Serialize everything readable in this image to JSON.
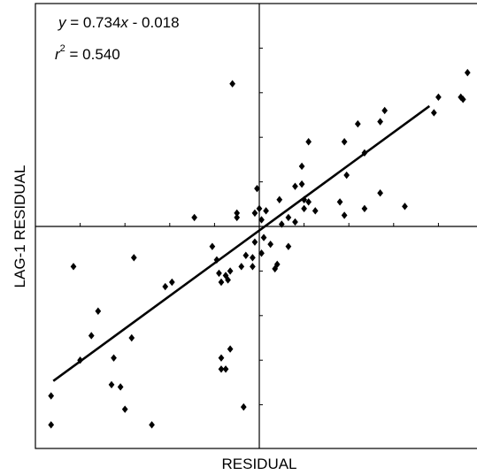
{
  "chart_data": {
    "type": "scatter",
    "title": "",
    "xlabel": "RESIDUAL",
    "ylabel": "LAG-1 RESIDUAL",
    "annotations": {
      "equation": {
        "y_var": "y",
        "eq": " = 0.734",
        "x_var": "x",
        "tail": " - 0.018"
      },
      "r2": {
        "base": "r",
        "exp": "2",
        "value": " = 0.540"
      }
    },
    "xlim": [
      -1.0,
      1.0
    ],
    "ylim": [
      -1.0,
      1.0
    ],
    "xtick_step": 0.2,
    "ytick_step": 0.2,
    "tick_labels_shown": false,
    "grid": false,
    "origin_axes": true,
    "fit_line": {
      "slope": 0.734,
      "intercept": -0.018,
      "x_range": [
        -0.92,
        0.76
      ]
    },
    "series": [
      {
        "marker": "diamond",
        "color": "#000000",
        "points": [
          [
            -0.93,
            -0.76
          ],
          [
            -0.93,
            -0.89
          ],
          [
            -0.83,
            -0.18
          ],
          [
            -0.8,
            -0.6
          ],
          [
            -0.75,
            -0.49
          ],
          [
            -0.72,
            -0.38
          ],
          [
            -0.65,
            -0.59
          ],
          [
            -0.62,
            -0.72
          ],
          [
            -0.6,
            -0.82
          ],
          [
            -0.57,
            -0.5
          ],
          [
            -0.66,
            -0.71
          ],
          [
            -0.56,
            -0.14
          ],
          [
            -0.48,
            -0.89
          ],
          [
            -0.42,
            -0.27
          ],
          [
            -0.39,
            -0.25
          ],
          [
            -0.29,
            0.04
          ],
          [
            -0.21,
            -0.09
          ],
          [
            -0.19,
            -0.15
          ],
          [
            -0.18,
            -0.21
          ],
          [
            -0.17,
            -0.25
          ],
          [
            -0.15,
            -0.22
          ],
          [
            -0.14,
            -0.24
          ],
          [
            -0.13,
            -0.2
          ],
          [
            -0.17,
            -0.59
          ],
          [
            -0.17,
            -0.64
          ],
          [
            -0.15,
            -0.64
          ],
          [
            -0.13,
            -0.55
          ],
          [
            -0.07,
            -0.81
          ],
          [
            -0.08,
            -0.18
          ],
          [
            -0.03,
            -0.14
          ],
          [
            -0.02,
            -0.07
          ],
          [
            -0.01,
            0.17
          ],
          [
            0.0,
            0.08
          ],
          [
            0.01,
            0.03
          ],
          [
            0.03,
            0.07
          ],
          [
            -0.1,
            0.06
          ],
          [
            -0.1,
            0.04
          ],
          [
            -0.06,
            -0.13
          ],
          [
            -0.03,
            -0.18
          ],
          [
            0.01,
            -0.12
          ],
          [
            -0.12,
            0.64
          ],
          [
            -0.02,
            0.06
          ],
          [
            0.02,
            -0.05
          ],
          [
            0.05,
            -0.08
          ],
          [
            0.07,
            -0.19
          ],
          [
            0.08,
            -0.17
          ],
          [
            0.09,
            0.12
          ],
          [
            0.1,
            0.01
          ],
          [
            0.13,
            -0.09
          ],
          [
            0.13,
            0.04
          ],
          [
            0.16,
            0.02
          ],
          [
            0.16,
            0.18
          ],
          [
            0.19,
            0.19
          ],
          [
            0.2,
            0.12
          ],
          [
            0.19,
            0.27
          ],
          [
            0.2,
            0.08
          ],
          [
            0.22,
            0.11
          ],
          [
            0.22,
            0.38
          ],
          [
            0.25,
            0.07
          ],
          [
            0.36,
            0.11
          ],
          [
            0.38,
            0.05
          ],
          [
            0.38,
            0.38
          ],
          [
            0.39,
            0.23
          ],
          [
            0.44,
            0.46
          ],
          [
            0.47,
            0.08
          ],
          [
            0.47,
            0.33
          ],
          [
            0.54,
            0.15
          ],
          [
            0.54,
            0.47
          ],
          [
            0.56,
            0.52
          ],
          [
            0.65,
            0.09
          ],
          [
            0.78,
            0.51
          ],
          [
            0.8,
            0.58
          ],
          [
            0.9,
            0.58
          ],
          [
            0.91,
            0.57
          ],
          [
            0.93,
            0.69
          ]
        ]
      }
    ]
  }
}
